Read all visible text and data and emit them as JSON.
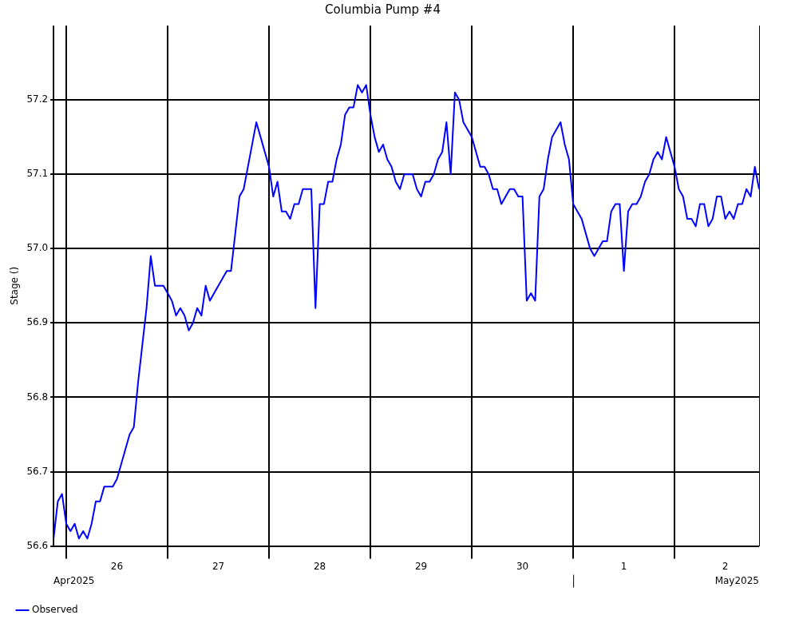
{
  "chart_data": {
    "type": "line",
    "title": "Columbia Pump #4",
    "ylabel": "Stage ()",
    "x": [
      "2025-04-25T21:00",
      "2025-04-25T22:00",
      "2025-04-25T23:00",
      "2025-04-26T00:00",
      "2025-04-26T01:00",
      "2025-04-26T02:00",
      "2025-04-26T03:00",
      "2025-04-26T04:00",
      "2025-04-26T05:00",
      "2025-04-26T06:00",
      "2025-04-26T07:00",
      "2025-04-26T08:00",
      "2025-04-26T09:00",
      "2025-04-26T10:00",
      "2025-04-26T11:00",
      "2025-04-26T12:00",
      "2025-04-26T13:00",
      "2025-04-26T14:00",
      "2025-04-26T15:00",
      "2025-04-26T16:00",
      "2025-04-26T17:00",
      "2025-04-26T18:00",
      "2025-04-26T19:00",
      "2025-04-26T20:00",
      "2025-04-26T21:00",
      "2025-04-26T22:00",
      "2025-04-26T23:00",
      "2025-04-27T00:00",
      "2025-04-27T01:00",
      "2025-04-27T02:00",
      "2025-04-27T03:00",
      "2025-04-27T04:00",
      "2025-04-27T05:00",
      "2025-04-27T06:00",
      "2025-04-27T07:00",
      "2025-04-27T08:00",
      "2025-04-27T09:00",
      "2025-04-27T10:00",
      "2025-04-27T11:00",
      "2025-04-27T12:00",
      "2025-04-27T13:00",
      "2025-04-27T14:00",
      "2025-04-27T15:00",
      "2025-04-27T16:00",
      "2025-04-27T17:00",
      "2025-04-27T18:00",
      "2025-04-27T19:00",
      "2025-04-27T20:00",
      "2025-04-27T21:00",
      "2025-04-27T22:00",
      "2025-04-27T23:00",
      "2025-04-28T00:00",
      "2025-04-28T01:00",
      "2025-04-28T02:00",
      "2025-04-28T03:00",
      "2025-04-28T04:00",
      "2025-04-28T05:00",
      "2025-04-28T06:00",
      "2025-04-28T07:00",
      "2025-04-28T08:00",
      "2025-04-28T09:00",
      "2025-04-28T10:00",
      "2025-04-28T11:00",
      "2025-04-28T12:00",
      "2025-04-28T13:00",
      "2025-04-28T14:00",
      "2025-04-28T15:00",
      "2025-04-28T16:00",
      "2025-04-28T17:00",
      "2025-04-28T18:00",
      "2025-04-28T19:00",
      "2025-04-28T20:00",
      "2025-04-28T21:00",
      "2025-04-28T22:00",
      "2025-04-28T23:00",
      "2025-04-29T00:00",
      "2025-04-29T01:00",
      "2025-04-29T02:00",
      "2025-04-29T03:00",
      "2025-04-29T04:00",
      "2025-04-29T05:00",
      "2025-04-29T06:00",
      "2025-04-29T07:00",
      "2025-04-29T08:00",
      "2025-04-29T09:00",
      "2025-04-29T10:00",
      "2025-04-29T11:00",
      "2025-04-29T12:00",
      "2025-04-29T13:00",
      "2025-04-29T14:00",
      "2025-04-29T15:00",
      "2025-04-29T16:00",
      "2025-04-29T17:00",
      "2025-04-29T18:00",
      "2025-04-29T19:00",
      "2025-04-29T20:00",
      "2025-04-29T21:00",
      "2025-04-29T22:00",
      "2025-04-29T23:00",
      "2025-04-30T00:00",
      "2025-04-30T01:00",
      "2025-04-30T02:00",
      "2025-04-30T03:00",
      "2025-04-30T04:00",
      "2025-04-30T05:00",
      "2025-04-30T06:00",
      "2025-04-30T07:00",
      "2025-04-30T08:00",
      "2025-04-30T09:00",
      "2025-04-30T10:00",
      "2025-04-30T11:00",
      "2025-04-30T12:00",
      "2025-04-30T13:00",
      "2025-04-30T14:00",
      "2025-04-30T15:00",
      "2025-04-30T16:00",
      "2025-04-30T17:00",
      "2025-04-30T18:00",
      "2025-04-30T19:00",
      "2025-04-30T20:00",
      "2025-04-30T21:00",
      "2025-04-30T22:00",
      "2025-04-30T23:00",
      "2025-05-01T00:00",
      "2025-05-01T01:00",
      "2025-05-01T02:00",
      "2025-05-01T03:00",
      "2025-05-01T04:00",
      "2025-05-01T05:00",
      "2025-05-01T06:00",
      "2025-05-01T07:00",
      "2025-05-01T08:00",
      "2025-05-01T09:00",
      "2025-05-01T10:00",
      "2025-05-01T11:00",
      "2025-05-01T12:00",
      "2025-05-01T13:00",
      "2025-05-01T14:00",
      "2025-05-01T15:00",
      "2025-05-01T16:00",
      "2025-05-01T17:00",
      "2025-05-01T18:00",
      "2025-05-01T19:00",
      "2025-05-01T20:00",
      "2025-05-01T21:00",
      "2025-05-01T22:00",
      "2025-05-01T23:00",
      "2025-05-02T00:00",
      "2025-05-02T01:00",
      "2025-05-02T02:00",
      "2025-05-02T03:00",
      "2025-05-02T04:00",
      "2025-05-02T05:00",
      "2025-05-02T06:00",
      "2025-05-02T07:00",
      "2025-05-02T08:00",
      "2025-05-02T09:00",
      "2025-05-02T10:00",
      "2025-05-02T11:00",
      "2025-05-02T12:00",
      "2025-05-02T13:00",
      "2025-05-02T14:00",
      "2025-05-02T15:00",
      "2025-05-02T16:00",
      "2025-05-02T17:00",
      "2025-05-02T18:00",
      "2025-05-02T19:00",
      "2025-05-02T20:00"
    ],
    "series": [
      {
        "name": "Observed",
        "color": "#0000ff",
        "values": [
          56.61,
          56.66,
          56.67,
          56.63,
          56.62,
          56.63,
          56.61,
          56.62,
          56.61,
          56.63,
          56.66,
          56.66,
          56.68,
          56.68,
          56.68,
          56.69,
          56.71,
          56.73,
          56.75,
          56.76,
          56.82,
          56.87,
          56.92,
          56.99,
          56.95,
          56.95,
          56.95,
          56.94,
          56.93,
          56.91,
          56.92,
          56.91,
          56.89,
          56.9,
          56.92,
          56.91,
          56.95,
          56.93,
          56.94,
          56.95,
          56.96,
          56.97,
          56.97,
          57.02,
          57.07,
          57.08,
          57.11,
          57.14,
          57.17,
          57.15,
          57.13,
          57.11,
          57.07,
          57.09,
          57.05,
          57.05,
          57.04,
          57.06,
          57.06,
          57.08,
          57.08,
          57.08,
          56.92,
          57.06,
          57.06,
          57.09,
          57.09,
          57.12,
          57.14,
          57.18,
          57.19,
          57.19,
          57.22,
          57.21,
          57.22,
          57.18,
          57.15,
          57.13,
          57.14,
          57.12,
          57.11,
          57.09,
          57.08,
          57.1,
          57.1,
          57.1,
          57.08,
          57.07,
          57.09,
          57.09,
          57.1,
          57.12,
          57.13,
          57.17,
          57.1,
          57.21,
          57.2,
          57.17,
          57.16,
          57.15,
          57.13,
          57.11,
          57.11,
          57.1,
          57.08,
          57.08,
          57.06,
          57.07,
          57.08,
          57.08,
          57.07,
          57.07,
          56.93,
          56.94,
          56.93,
          57.07,
          57.08,
          57.12,
          57.15,
          57.16,
          57.17,
          57.14,
          57.12,
          57.06,
          57.05,
          57.04,
          57.02,
          57.0,
          56.99,
          57.0,
          57.01,
          57.01,
          57.05,
          57.06,
          57.06,
          56.97,
          57.05,
          57.06,
          57.06,
          57.07,
          57.09,
          57.1,
          57.12,
          57.13,
          57.12,
          57.15,
          57.13,
          57.11,
          57.08,
          57.07,
          57.04,
          57.04,
          57.03,
          57.06,
          57.06,
          57.03,
          57.04,
          57.07,
          57.07,
          57.04,
          57.05,
          57.04,
          57.06,
          57.06,
          57.08,
          57.07,
          57.11,
          57.08
        ]
      }
    ],
    "xlim": [
      "2025-04-25T21:00",
      "2025-05-02T20:00"
    ],
    "xticks": [
      {
        "value": "2025-04-26T00:00",
        "label": null
      },
      {
        "value": "2025-04-26T12:00",
        "label": "26"
      },
      {
        "value": "2025-04-27T00:00",
        "label": null
      },
      {
        "value": "2025-04-27T12:00",
        "label": "27"
      },
      {
        "value": "2025-04-28T00:00",
        "label": null
      },
      {
        "value": "2025-04-28T12:00",
        "label": "28"
      },
      {
        "value": "2025-04-29T00:00",
        "label": null
      },
      {
        "value": "2025-04-29T12:00",
        "label": "29"
      },
      {
        "value": "2025-04-30T00:00",
        "label": null
      },
      {
        "value": "2025-04-30T12:00",
        "label": "30"
      },
      {
        "value": "2025-05-01T00:00",
        "label": null
      },
      {
        "value": "2025-05-01T12:00",
        "label": "1"
      },
      {
        "value": "2025-05-02T00:00",
        "label": null
      },
      {
        "value": "2025-05-02T12:00",
        "label": "2"
      }
    ],
    "ylim": [
      56.6,
      57.3
    ],
    "yticks": [
      56.6,
      56.7,
      56.8,
      56.9,
      {
        "value": 57,
        "label": "57.0"
      },
      57.1,
      57.2
    ],
    "annotations": [
      "Apr2025",
      "May2025"
    ],
    "grid": true,
    "legend": "bottom left",
    "marker": "none",
    "line_style": "solid"
  }
}
